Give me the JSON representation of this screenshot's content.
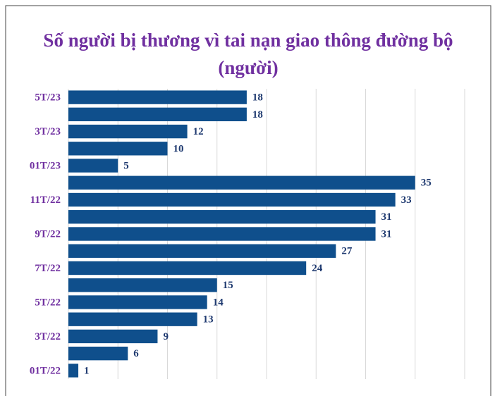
{
  "chart_data": {
    "type": "bar",
    "orientation": "horizontal",
    "title": "Số người bị thương vì tai nạn giao thông đường bộ",
    "subtitle": "(người)",
    "categories": [
      "5T/23",
      null,
      "3T/23",
      null,
      "01T/23",
      null,
      "11T/22",
      null,
      "9T/22",
      null,
      "7T/22",
      null,
      "5T/22",
      null,
      "3T/22",
      null,
      "01T/22"
    ],
    "values": [
      18,
      18,
      12,
      10,
      5,
      35,
      33,
      31,
      31,
      27,
      24,
      15,
      14,
      13,
      9,
      6,
      1
    ],
    "color": "#0f4f8c",
    "xlim": [
      0,
      40
    ],
    "xticks": [
      0,
      5,
      10,
      15,
      20,
      25,
      30,
      35,
      40
    ],
    "grid": true
  }
}
